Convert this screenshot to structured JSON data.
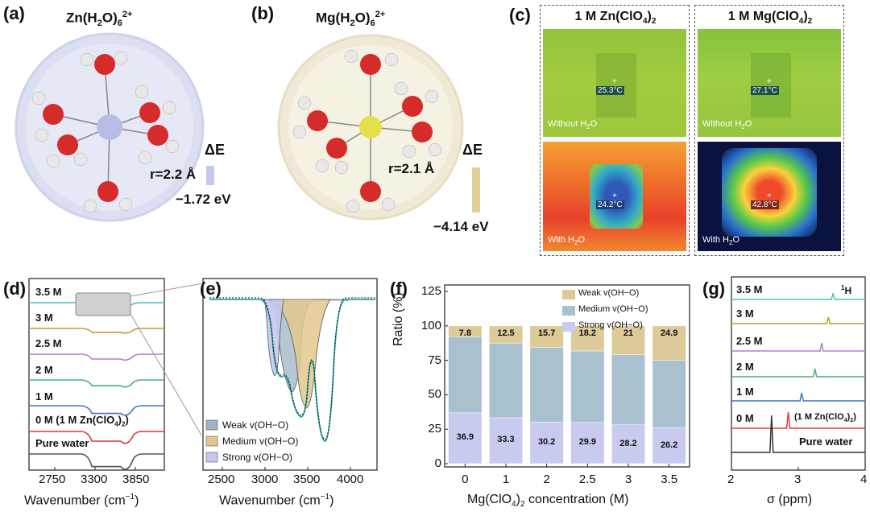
{
  "panel_a": {
    "label": "(a)",
    "formula_main": "Zn(H",
    "formula_sub": "2",
    "formula_mid": "O)",
    "formula_sub2": "6",
    "formula_sup": "2+",
    "radius_text": "r=2.2 Å",
    "delta_label": "ΔE",
    "delta_value": "−1.72 eV",
    "halo_color": "#d9dcf0",
    "center_color": "#b8bde6",
    "bar_color": "#c6c9ee"
  },
  "panel_b": {
    "label": "(b)",
    "formula_main": "Mg(H",
    "formula_sub": "2",
    "formula_mid": "O)",
    "formula_sub2": "6",
    "formula_sup": "2+",
    "radius_text": "r=2.1 Å",
    "delta_label": "ΔE",
    "delta_value": "−4.14 eV",
    "halo_color": "#f1ecd9",
    "center_color": "#e3e04a",
    "bar_color": "#e3cf98"
  },
  "panel_c": {
    "label": "(c)",
    "col1_title": "1 M Zn(ClO",
    "col1_sub": "4",
    "col1_end": ")",
    "col1_sub2": "2",
    "col2_title": "1 M Mg(ClO",
    "col2_sub": "4",
    "col2_end": ")",
    "col2_sub2": "2",
    "temps": [
      "25.3°C",
      "27.1°C",
      "24.2°C",
      "42.8°C"
    ],
    "without_label": "Without H",
    "without_sub": "2",
    "without_end": "O",
    "with_label": "With H",
    "with_sub": "2",
    "with_end": "O"
  },
  "panel_d": {
    "label": "(d)",
    "xlabel": "Wavenumber (cm",
    "xlabel_sup": "−1",
    "xlabel_end": ")",
    "xticks": [
      "2750",
      "3300",
      "3850"
    ],
    "curves": [
      {
        "name": "3.5 M",
        "color": "#4fbfbf"
      },
      {
        "name": "3 M",
        "color": "#c79a2a"
      },
      {
        "name": "2.5 M",
        "color": "#b97ad6"
      },
      {
        "name": "2 M",
        "color": "#4bb07a"
      },
      {
        "name": "1 M",
        "color": "#3f74c7"
      },
      {
        "name": "0 M (1 M Zn(ClO",
        "color": "#d93a3a"
      },
      {
        "name": "Pure water",
        "color": "#555555"
      }
    ],
    "zero_sub": "4",
    "zero_end": ")",
    "zero_sub2": "2",
    "zero_close": ")"
  },
  "panel_e": {
    "label": "(e)",
    "xlabel": "Wavenumber (cm",
    "xlabel_sup": "−1",
    "xlabel_end": ")",
    "xticks": [
      "2500",
      "3000",
      "3500",
      "4000"
    ],
    "legend": [
      {
        "name": "Weak v(OH−O)",
        "color": "#9fb3c4"
      },
      {
        "name": "Medium v(OH−O)",
        "color": "#e3c88e"
      },
      {
        "name": "Strong v(OH−O)",
        "color": "#c7c8ee"
      }
    ]
  },
  "panel_f": {
    "label": "(f)",
    "legend": [
      {
        "name": "Weak v(OH−O)",
        "color": "#dccb98"
      },
      {
        "name": "Medium v(OH−O)",
        "color": "#a9c1cf"
      },
      {
        "name": "Strong v(OH−O)",
        "color": "#c8cbef"
      }
    ],
    "xlabel": "Mg(ClO",
    "xlabel_sub": "4",
    "xlabel_mid": ")",
    "xlabel_sub2": "2",
    "xlabel_end": " concentration (M)",
    "ylabel": "Ratio (%)"
  },
  "panel_g": {
    "label": "(g)",
    "xlabel": "σ (ppm)",
    "xticks": [
      "2",
      "3",
      "4"
    ],
    "nucleus": "1",
    "nucleus_end": "H",
    "curves": [
      {
        "name": "3.5 M",
        "color": "#4fbfbf",
        "peak_ppm": 3.52
      },
      {
        "name": "3 M",
        "color": "#c79a2a",
        "peak_ppm": 3.45
      },
      {
        "name": "2.5 M",
        "color": "#b97ad6",
        "peak_ppm": 3.35
      },
      {
        "name": "2 M",
        "color": "#4bb07a",
        "peak_ppm": 3.25
      },
      {
        "name": "1 M",
        "color": "#3f74c7",
        "peak_ppm": 3.05
      },
      {
        "name": "0 M",
        "color": "#d93a3a",
        "peak_ppm": 2.85
      },
      {
        "name": "Pure water",
        "color": "#333333",
        "peak_ppm": 2.6
      }
    ],
    "zero_annot": "(1 M Zn(ClO",
    "zero_annot_sub": "4",
    "zero_annot_end": ")",
    "zero_annot_sub2": "2",
    "zero_annot_close": ")"
  },
  "chart_data": {
    "type": "bar",
    "categories": [
      "0",
      "1",
      "2",
      "2.5",
      "3",
      "3.5"
    ],
    "series": [
      {
        "name": "Strong v(OH−O)",
        "values": [
          36.9,
          33.3,
          30.2,
          29.9,
          28.2,
          26.2
        ]
      },
      {
        "name": "Medium v(OH−O)",
        "values": [
          55.3,
          54.2,
          54.1,
          51.9,
          50.8,
          48.9
        ]
      },
      {
        "name": "Weak v(OH−O)",
        "values": [
          7.8,
          12.5,
          15.7,
          18.2,
          21,
          24.9
        ]
      }
    ],
    "weak_labels": [
      "7.8",
      "12.5",
      "15.7",
      "18.2",
      "21",
      "24.9"
    ],
    "strong_labels": [
      "36.9",
      "33.3",
      "30.2",
      "29.9",
      "28.2",
      "26.2"
    ],
    "yticks": [
      "0",
      "25",
      "50",
      "75",
      "100",
      "125"
    ],
    "ylim": [
      0,
      125
    ],
    "stacked": true
  }
}
